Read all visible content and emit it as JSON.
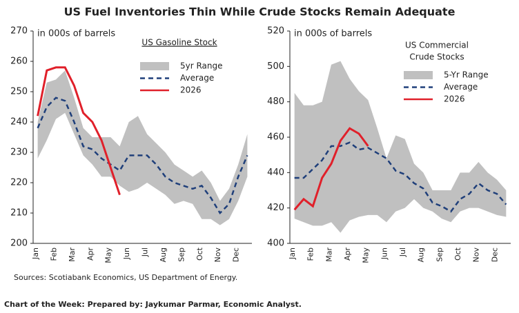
{
  "title": "US Fuel Inventories Thin While Crude Stocks Remain Adequate",
  "source": "Sources: Scotiabank Economics, US Department of Energy.",
  "footer": "Chart of the Week: Prepared by: Jaykumar Parmar, Economic Analyst.",
  "chart_data": [
    {
      "type": "band-line",
      "annotation": "in 000s of barrels",
      "legend_title": [
        "US Gasoline Stock"
      ],
      "categories": [
        "Jan",
        null,
        "Feb",
        null,
        "Mar",
        null,
        "Apr",
        null,
        "May",
        null,
        "Jun",
        null,
        "Jul",
        null,
        "Aug",
        null,
        "Sep",
        null,
        "Oct",
        null,
        "Nov",
        null,
        "Dec",
        null
      ],
      "ylim": [
        200,
        270
      ],
      "yticks": [
        200,
        210,
        220,
        230,
        240,
        250,
        260,
        270
      ],
      "range": {
        "name": "5yr Range",
        "color": "#c0c0c0",
        "low": [
          228,
          234,
          241,
          243,
          236,
          229,
          226,
          222,
          222,
          219,
          217,
          218,
          220,
          218,
          216,
          213,
          214,
          213,
          208,
          208,
          206,
          208,
          214,
          222
        ],
        "high": [
          240,
          253,
          254,
          257,
          248,
          238,
          235,
          235,
          235,
          232,
          240,
          242,
          236,
          233,
          230,
          226,
          224,
          222,
          224,
          220,
          214,
          218,
          226,
          236
        ]
      },
      "series": [
        {
          "name": "Average",
          "color": "#1f3f7a",
          "dash": true,
          "values": [
            238,
            245,
            248,
            247,
            240,
            232,
            231,
            228,
            226,
            224,
            229,
            229,
            229,
            226,
            222,
            220,
            219,
            218,
            219,
            215,
            210,
            213,
            222,
            229
          ]
        },
        {
          "name": "2026",
          "color": "#e0202a",
          "dash": false,
          "values": [
            242,
            257,
            258,
            258,
            252,
            243,
            240,
            234,
            225,
            216,
            null,
            null,
            null,
            null,
            null,
            null,
            null,
            null,
            null,
            null,
            null,
            null,
            null,
            null
          ]
        }
      ]
    },
    {
      "type": "band-line",
      "annotation": "in 000s of barrels",
      "legend_title": [
        "US Commercial",
        "Crude Stocks"
      ],
      "categories": [
        "Jan",
        null,
        "Feb",
        null,
        "Mar",
        null,
        "Apr",
        null,
        "May",
        null,
        "Jun",
        null,
        "Jul",
        null,
        "Aug",
        null,
        "Sep",
        null,
        "Oct",
        null,
        "Nov",
        null,
        "Dec",
        null
      ],
      "ylim": [
        400,
        520
      ],
      "yticks": [
        400,
        420,
        440,
        460,
        480,
        500,
        520
      ],
      "range": {
        "name": "5-Yr Range",
        "color": "#c0c0c0",
        "low": [
          414,
          412,
          410,
          410,
          412,
          406,
          413,
          415,
          416,
          416,
          412,
          418,
          420,
          425,
          420,
          418,
          414,
          412,
          418,
          420,
          420,
          418,
          416,
          415
        ],
        "high": [
          485,
          478,
          478,
          480,
          501,
          503,
          493,
          486,
          481,
          465,
          448,
          461,
          459,
          445,
          440,
          430,
          430,
          430,
          440,
          440,
          446,
          440,
          436,
          430
        ]
      },
      "series": [
        {
          "name": "Average",
          "color": "#1f3f7a",
          "dash": true,
          "values": [
            437,
            437,
            442,
            447,
            455,
            455,
            457,
            453,
            454,
            451,
            448,
            441,
            439,
            434,
            431,
            423,
            421,
            418,
            425,
            428,
            434,
            430,
            428,
            422
          ]
        },
        {
          "name": "2026",
          "color": "#e0202a",
          "dash": false,
          "values": [
            419,
            425,
            421,
            437,
            445,
            458,
            465,
            462,
            455,
            null,
            null,
            null,
            null,
            null,
            null,
            null,
            null,
            null,
            null,
            null,
            null,
            null,
            null,
            null
          ]
        }
      ]
    }
  ]
}
